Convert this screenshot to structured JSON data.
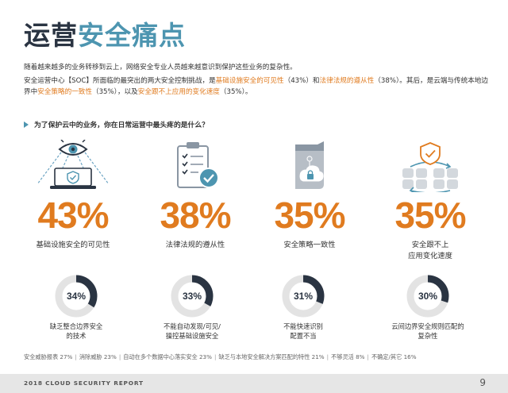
{
  "title": {
    "dark": "运营",
    "teal": "安全痛点"
  },
  "intro": {
    "line1": "随着越来越多的业务转移到云上，网络安全专业人员越来越意识到保护这些业务的复杂性。",
    "p2_a": "安全运营中心【SOC】所面临的最突出的两大安全控制挑战，是",
    "p2_hl1": "基础设施安全的可见性",
    "p2_b": "（43%）和",
    "p2_hl2": "法律法规的遵从性",
    "p2_c": "（38%）。其后，是云端与传统本地边界中",
    "p2_hl3": "安全策略的一致性",
    "p2_d": "（35%），以及",
    "p2_hl4": "安全跟不上应用的变化速度",
    "p2_e": "（35%）。"
  },
  "question": "为了保护云中的业务，你在日常运营中最头疼的是什么？",
  "stats": [
    {
      "icon": "eye-laptop-icon",
      "value": "43%",
      "label": "基础设施安全的可见性"
    },
    {
      "icon": "checklist-icon",
      "value": "38%",
      "label": "法律法规的遵从性"
    },
    {
      "icon": "cloud-lock-icon",
      "value": "35%",
      "label": "安全策略一致性"
    },
    {
      "icon": "shield-sync-icon",
      "value": "35%",
      "label1": "安全跟不上",
      "label2": "应用变化速度"
    }
  ],
  "secondary": [
    {
      "value": "34%",
      "pct": 34,
      "label1": "缺乏整合边界安全",
      "label2": "的技术"
    },
    {
      "value": "33%",
      "pct": 33,
      "label1": "不能自动发现/可见/",
      "label2": "操控基础设施安全"
    },
    {
      "value": "31%",
      "pct": 31,
      "label1": "不能快速识别",
      "label2": "配置不当"
    },
    {
      "value": "30%",
      "pct": 30,
      "label1": "云间边界安全规则匹配的",
      "label2": "复杂性"
    }
  ],
  "footnote": [
    "安全威胁报表 27%",
    "消除威胁 23%",
    "自动在多个数据中心落实安全 23%",
    "缺乏与本地安全解决方案匹配的特性 21%",
    "不够灵活 8%",
    "不确定/其它 16%"
  ],
  "footer": {
    "report": "2018 CLOUD SECURITY REPORT",
    "page": "9"
  },
  "colors": {
    "accent": "#e07b1f",
    "teal": "#4d95b0",
    "dark": "#2a3442",
    "donut_bg": "#e3e3e3",
    "icon_gray": "#8a96a3"
  }
}
